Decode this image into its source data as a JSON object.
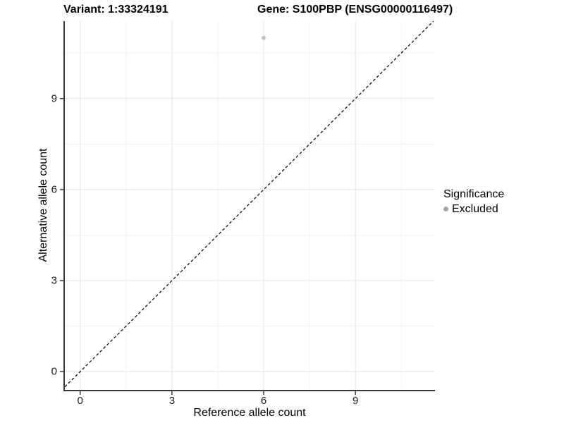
{
  "titles": {
    "variant": "Variant: 1:33324191",
    "gene": "Gene: S100PBP (ENSG00000116497)"
  },
  "axes": {
    "x_title": "Reference allele count",
    "y_title": "Alternative allele count"
  },
  "legend": {
    "title": "Significance",
    "items": [
      {
        "label": "Excluded",
        "color": "#a6a6a6"
      }
    ]
  },
  "colors": {
    "point": "#bebebe",
    "legend_dot": "#a6a6a6",
    "grid_major": "#e4e4e4",
    "grid_minor": "#f1f1f1",
    "axis_line": "#3a3a3a",
    "identity_line": "#000000",
    "text": "#000000"
  },
  "chart_data": {
    "type": "scatter",
    "title": "Variant: 1:33324191 — Gene: S100PBP (ENSG00000116497)",
    "xlabel": "Reference allele count",
    "ylabel": "Alternative allele count",
    "xlim": [
      -0.5,
      11.6
    ],
    "ylim": [
      -0.6,
      11.55
    ],
    "xticks": [
      0,
      3,
      6,
      9
    ],
    "yticks": [
      0,
      3,
      6,
      9
    ],
    "x_minor_ticks": [
      1.5,
      4.5,
      7.5,
      10.5
    ],
    "y_minor_ticks": [
      1.5,
      4.5,
      7.5,
      10.5
    ],
    "grid": true,
    "legend_position": "right",
    "series": [
      {
        "name": "Excluded",
        "color": "#bebebe",
        "points": [
          {
            "x": 6,
            "y": 11
          }
        ]
      }
    ],
    "reference_line": {
      "kind": "identity y=x",
      "style": "dashed",
      "color": "#000000",
      "slope": 1,
      "intercept": 0
    }
  }
}
